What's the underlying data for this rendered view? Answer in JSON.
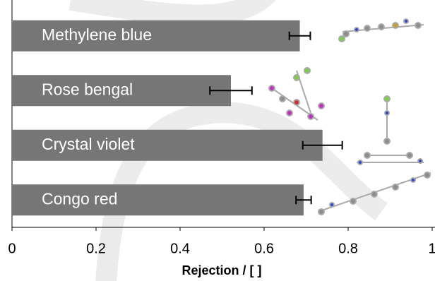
{
  "chart_data": {
    "type": "barh",
    "categories": [
      "Methylene blue",
      "Rose bengal",
      "Crystal violet",
      "Congo red"
    ],
    "values": [
      0.685,
      0.521,
      0.739,
      0.694
    ],
    "errors": [
      0.025,
      0.05,
      0.047,
      0.018
    ],
    "color": "#767676",
    "xlabel": "Rejection / [ ]",
    "xlim": [
      0,
      1
    ],
    "xticks": [
      0,
      0.2,
      0.4,
      0.6,
      0.8,
      1
    ]
  }
}
